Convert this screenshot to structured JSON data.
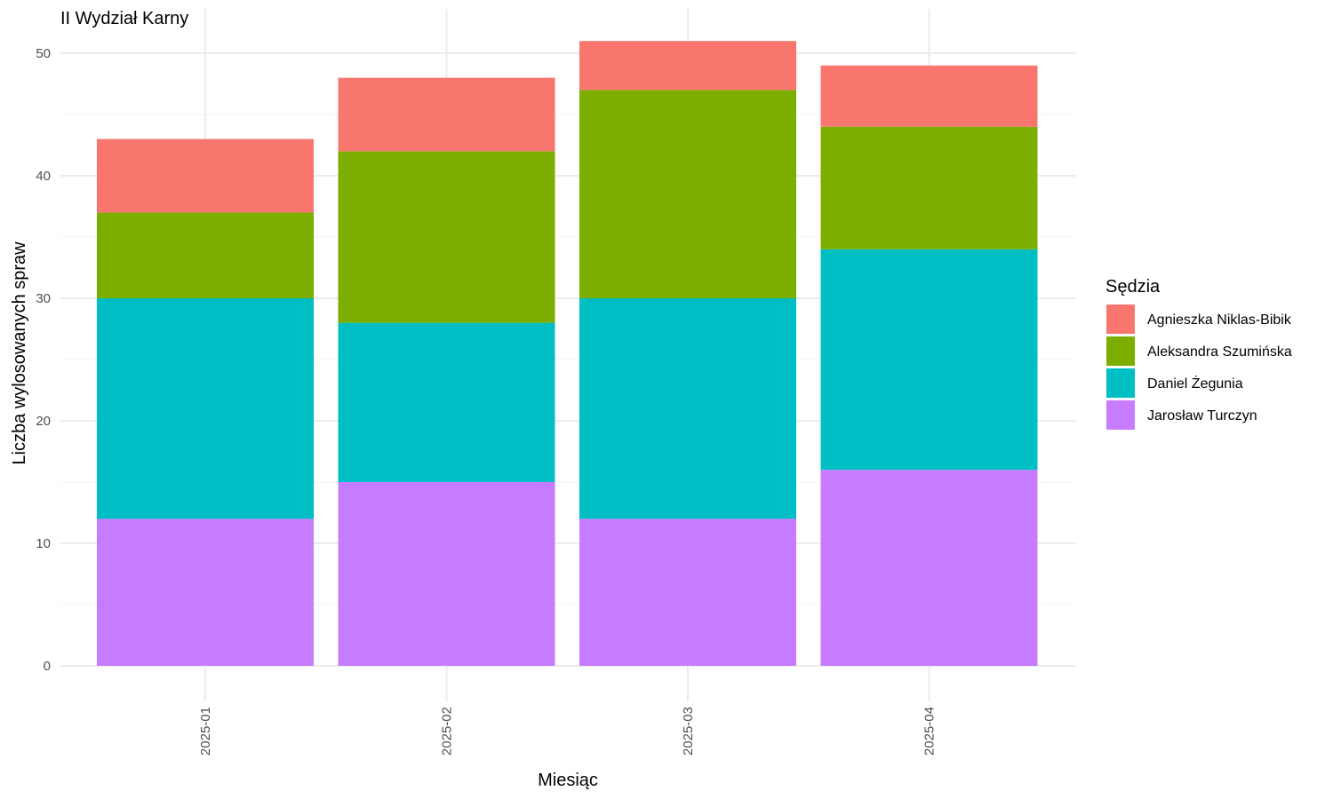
{
  "chart_data": {
    "type": "bar",
    "stacked": true,
    "title": "II Wydział Karny",
    "xlabel": "Miesiąc",
    "ylabel": "Liczba wylosowanych spraw",
    "categories": [
      "2025-01",
      "2025-02",
      "2025-03",
      "2025-04"
    ],
    "ylim": [
      0,
      52
    ],
    "yticks": [
      0,
      10,
      20,
      30,
      40,
      50
    ],
    "grid": true,
    "legend": {
      "title": "Sędzia",
      "position": "right"
    },
    "series": [
      {
        "name": "Agnieszka Niklas-Bibik",
        "color": "#F8766D",
        "values": [
          6,
          6,
          4,
          5
        ]
      },
      {
        "name": "Aleksandra Szumińska",
        "color": "#7CAE00",
        "values": [
          7,
          14,
          17,
          10
        ]
      },
      {
        "name": "Daniel Żegunia",
        "color": "#00BFC4",
        "values": [
          18,
          13,
          18,
          18
        ]
      },
      {
        "name": "Jarosław Turczyn",
        "color": "#C77CFF",
        "values": [
          12,
          15,
          12,
          16
        ]
      }
    ]
  }
}
